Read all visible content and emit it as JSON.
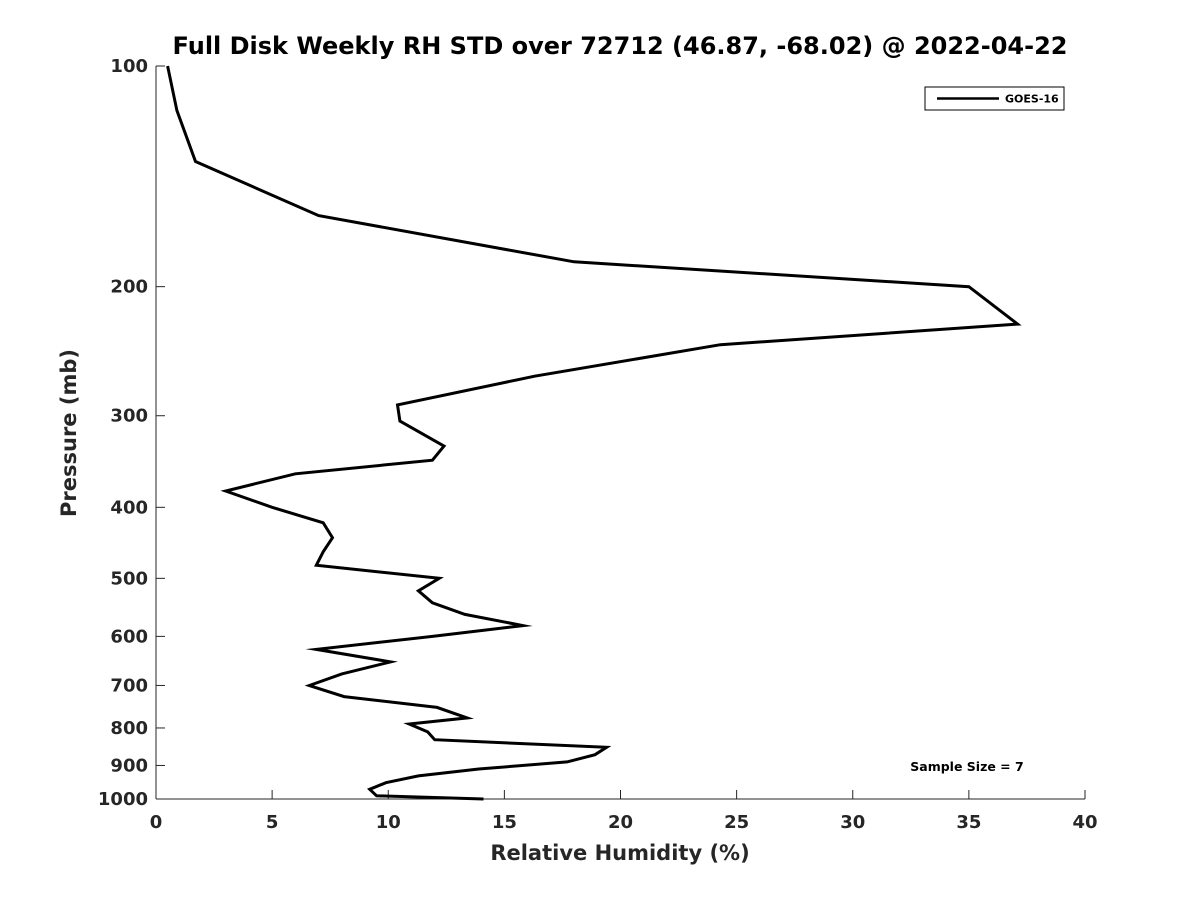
{
  "chart_data": {
    "type": "line",
    "title": "Full Disk Weekly RH STD over 72712 (46.87, -68.02) @ 2022-04-22",
    "xlabel": "Relative Humidity (%)",
    "ylabel": "Pressure (mb)",
    "xlim": [
      0,
      40
    ],
    "ylim": [
      100,
      1000
    ],
    "y_scale": "log",
    "y_reversed": true,
    "grid": false,
    "legend_position": "top-right",
    "x_ticks": [
      "0",
      "5",
      "10",
      "15",
      "20",
      "25",
      "30",
      "35",
      "40"
    ],
    "y_ticks": [
      "100",
      "200",
      "300",
      "400",
      "500",
      "600",
      "700",
      "800",
      "900",
      "1000"
    ],
    "series": [
      {
        "name": "GOES-16",
        "color": "#000000",
        "x": [
          0.5,
          0.9,
          1.7,
          7.0,
          18.0,
          35.0,
          37.1,
          24.3,
          16.3,
          10.4,
          10.5,
          12.4,
          11.9,
          6.0,
          3.0,
          5.0,
          7.2,
          7.6,
          7.2,
          6.9,
          12.2,
          11.3,
          11.9,
          13.3,
          15.8,
          11.9,
          6.9,
          10.1,
          8.0,
          6.6,
          8.1,
          12.1,
          13.4,
          10.9,
          11.7,
          12.0,
          19.4,
          18.9,
          17.7,
          13.9,
          11.3,
          9.9,
          9.2,
          9.5,
          14.1
        ],
        "y": [
          100,
          115,
          135,
          160,
          185,
          200,
          225,
          240,
          265,
          290,
          305,
          330,
          345,
          360,
          380,
          400,
          420,
          440,
          460,
          480,
          500,
          520,
          540,
          560,
          580,
          600,
          625,
          650,
          675,
          700,
          725,
          750,
          775,
          790,
          810,
          830,
          850,
          870,
          890,
          910,
          930,
          950,
          970,
          990,
          1000
        ]
      }
    ],
    "annotations": [
      "Sample Size = 7"
    ]
  }
}
